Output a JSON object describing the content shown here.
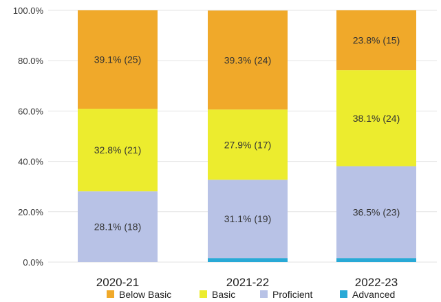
{
  "chart_data": {
    "type": "bar",
    "stacked": true,
    "categories": [
      "2020-21",
      "2021-22",
      "2022-23"
    ],
    "series": [
      {
        "name": "Advanced",
        "color": "#29a9d6",
        "values": [
          0.0,
          1.6,
          1.6
        ],
        "labels": [
          "",
          "",
          ""
        ]
      },
      {
        "name": "Proficient",
        "color": "#b8c2e6",
        "values": [
          28.1,
          31.1,
          36.5
        ],
        "labels": [
          "28.1% (18)",
          "31.1% (19)",
          "36.5% (23)"
        ]
      },
      {
        "name": "Basic",
        "color": "#ecec2e",
        "values": [
          32.8,
          27.9,
          38.1
        ],
        "labels": [
          "32.8% (21)",
          "27.9% (17)",
          "38.1% (24)"
        ]
      },
      {
        "name": "Below Basic",
        "color": "#f0a92a",
        "values": [
          39.1,
          39.3,
          23.8
        ],
        "labels": [
          "39.1% (25)",
          "39.3% (24)",
          "23.8% (15)"
        ]
      }
    ],
    "legend_order": [
      "Below Basic",
      "Basic",
      "Proficient",
      "Advanced"
    ],
    "y_ticks": [
      "0.0%",
      "20.0%",
      "40.0%",
      "60.0%",
      "80.0%",
      "100.0%"
    ],
    "ylim": [
      0,
      100
    ],
    "grid": true,
    "legend_position": "bottom"
  }
}
